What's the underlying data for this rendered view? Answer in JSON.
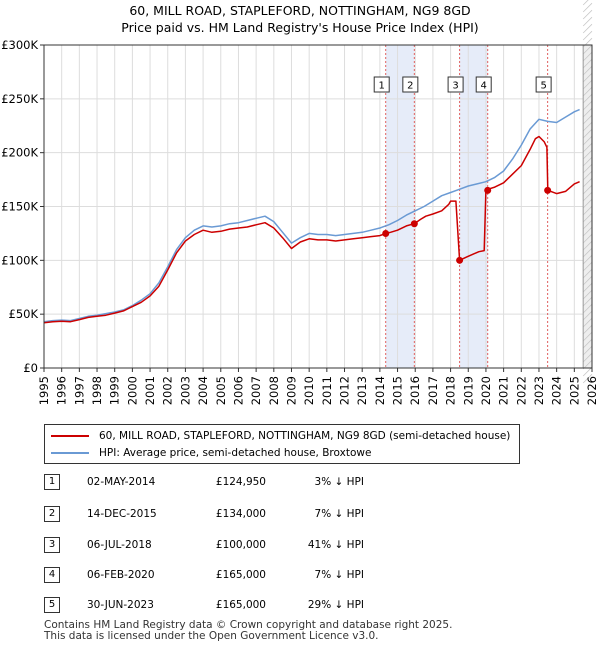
{
  "title_line1": "60, MILL ROAD, STAPLEFORD, NOTTINGHAM, NG9 8GD",
  "title_line2": "Price paid vs. HM Land Registry's House Price Index (HPI)",
  "colors": {
    "price": "#cc0000",
    "hpi": "#6a9ad4",
    "band": "#dde6f7",
    "grid": "#dddddd",
    "marker_line": "#e06060"
  },
  "chart_data": {
    "type": "line",
    "xlim": [
      1995,
      2026
    ],
    "ylim": [
      0,
      300000
    ],
    "y_ticks": [
      0,
      50000,
      100000,
      150000,
      200000,
      250000,
      300000
    ],
    "y_tick_labels": [
      "£0",
      "£50K",
      "£100K",
      "£150K",
      "£200K",
      "£250K",
      "£300K"
    ],
    "x_ticks": [
      1995,
      1996,
      1997,
      1998,
      1999,
      2000,
      2001,
      2002,
      2003,
      2004,
      2005,
      2006,
      2007,
      2008,
      2009,
      2010,
      2011,
      2012,
      2013,
      2014,
      2015,
      2016,
      2017,
      2018,
      2019,
      2020,
      2021,
      2022,
      2023,
      2024,
      2025,
      2026
    ],
    "forecast_from": 2025.5,
    "series": [
      {
        "name": "60, MILL ROAD, STAPLEFORD, NOTTINGHAM, NG9 8GD (semi-detached house)",
        "x": [
          1995.0,
          1995.5,
          1996.0,
          1996.5,
          1997.0,
          1997.5,
          1998.0,
          1998.5,
          1999.0,
          1999.5,
          2000.0,
          2000.5,
          2001.0,
          2001.5,
          2002.0,
          2002.5,
          2003.0,
          2003.5,
          2004.0,
          2004.5,
          2005.0,
          2005.5,
          2006.0,
          2006.5,
          2007.0,
          2007.5,
          2008.0,
          2008.5,
          2009.0,
          2009.5,
          2010.0,
          2010.5,
          2011.0,
          2011.5,
          2012.0,
          2012.5,
          2013.0,
          2013.5,
          2014.0,
          2014.33,
          2014.6,
          2015.0,
          2015.5,
          2015.95,
          2016.3,
          2016.6,
          2017.0,
          2017.5,
          2017.9,
          2018.0,
          2018.3,
          2018.51,
          2018.9,
          2019.3,
          2019.6,
          2019.9,
          2020.0,
          2020.1,
          2020.5,
          2021.0,
          2021.5,
          2022.0,
          2022.5,
          2022.8,
          2023.0,
          2023.3,
          2023.45,
          2023.5,
          2024.0,
          2024.5,
          2025.0,
          2025.3
        ],
        "values": [
          42000,
          43000,
          43500,
          43000,
          45000,
          47000,
          48000,
          49000,
          51000,
          53000,
          57000,
          61000,
          67000,
          76000,
          91000,
          107000,
          118000,
          124000,
          128000,
          126000,
          127000,
          129000,
          130000,
          131000,
          133000,
          135000,
          130000,
          121000,
          111000,
          117000,
          120000,
          119000,
          119000,
          118000,
          119000,
          120000,
          121000,
          122000,
          123000,
          124950,
          126000,
          128000,
          132000,
          134000,
          138000,
          141000,
          143000,
          146000,
          152000,
          155000,
          155000,
          100000,
          103000,
          106000,
          108000,
          109000,
          165000,
          166000,
          168000,
          172000,
          180000,
          188000,
          203000,
          213000,
          215000,
          210000,
          205000,
          165000,
          162000,
          164000,
          171000,
          173000
        ]
      },
      {
        "name": "HPI: Average price, semi-detached house, Broxtowe",
        "x": [
          1995.0,
          1995.5,
          1996.0,
          1996.5,
          1997.0,
          1997.5,
          1998.0,
          1998.5,
          1999.0,
          1999.5,
          2000.0,
          2000.5,
          2001.0,
          2001.5,
          2002.0,
          2002.5,
          2003.0,
          2003.5,
          2004.0,
          2004.5,
          2005.0,
          2005.5,
          2006.0,
          2006.5,
          2007.0,
          2007.5,
          2008.0,
          2008.5,
          2009.0,
          2009.5,
          2010.0,
          2010.5,
          2011.0,
          2011.5,
          2012.0,
          2012.5,
          2013.0,
          2013.5,
          2014.0,
          2014.5,
          2015.0,
          2015.5,
          2016.0,
          2016.5,
          2017.0,
          2017.5,
          2018.0,
          2018.5,
          2019.0,
          2019.5,
          2020.0,
          2020.5,
          2021.0,
          2021.5,
          2022.0,
          2022.5,
          2023.0,
          2023.5,
          2024.0,
          2024.5,
          2025.0,
          2025.3
        ],
        "values": [
          43000,
          44000,
          44500,
          44000,
          46000,
          48000,
          49000,
          50500,
          52000,
          54000,
          58000,
          63000,
          69000,
          79000,
          94000,
          110000,
          121000,
          128000,
          132000,
          131000,
          132000,
          134000,
          135000,
          137000,
          139000,
          141000,
          136000,
          126000,
          116000,
          121000,
          125000,
          124000,
          124000,
          123000,
          124000,
          125000,
          126000,
          128000,
          130000,
          133000,
          137000,
          142000,
          146000,
          150000,
          155000,
          160000,
          163000,
          166000,
          169000,
          171000,
          173000,
          177000,
          183000,
          194000,
          207000,
          222000,
          231000,
          229000,
          228000,
          233000,
          238000,
          240000
        ]
      }
    ],
    "sales": [
      {
        "num": "1",
        "x": 2014.33,
        "price": 124950
      },
      {
        "num": "2",
        "x": 2015.95,
        "price": 134000
      },
      {
        "num": "3",
        "x": 2018.51,
        "price": 100000
      },
      {
        "num": "4",
        "x": 2020.1,
        "price": 165000
      },
      {
        "num": "5",
        "x": 2023.49,
        "price": 165000
      }
    ]
  },
  "legend": {
    "price_label": "60, MILL ROAD, STAPLEFORD, NOTTINGHAM, NG9 8GD (semi-detached house)",
    "hpi_label": "HPI: Average price, semi-detached house, Broxtowe"
  },
  "transactions": [
    {
      "num": "1",
      "date": "02-MAY-2014",
      "price": "£124,950",
      "hpi": "3% ↓ HPI"
    },
    {
      "num": "2",
      "date": "14-DEC-2015",
      "price": "£134,000",
      "hpi": "7% ↓ HPI"
    },
    {
      "num": "3",
      "date": "06-JUL-2018",
      "price": "£100,000",
      "hpi": "41% ↓ HPI"
    },
    {
      "num": "4",
      "date": "06-FEB-2020",
      "price": "£165,000",
      "hpi": "7% ↓ HPI"
    },
    {
      "num": "5",
      "date": "30-JUN-2023",
      "price": "£165,000",
      "hpi": "29% ↓ HPI"
    }
  ],
  "footer_line1": "Contains HM Land Registry data © Crown copyright and database right 2025.",
  "footer_line2": "This data is licensed under the Open Government Licence v3.0."
}
